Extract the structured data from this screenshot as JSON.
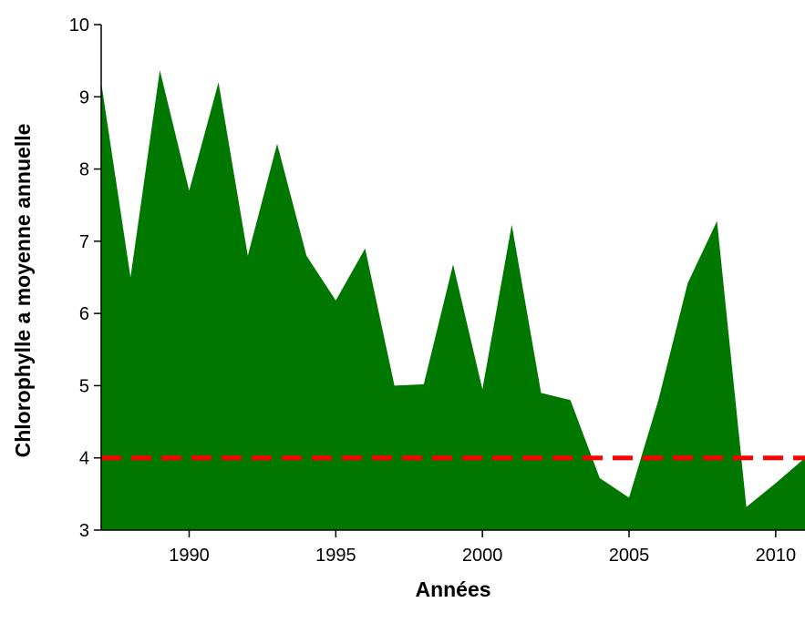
{
  "chart_data": {
    "type": "area",
    "title": "",
    "xlabel": "Années",
    "ylabel": "Chlorophylle a moyenne annuelle",
    "xlim": [
      1987,
      2011
    ],
    "ylim": [
      3,
      10
    ],
    "xticks": [
      1990,
      1995,
      2000,
      2005,
      2010
    ],
    "yticks": [
      3,
      4,
      5,
      6,
      7,
      8,
      9,
      10
    ],
    "grid": false,
    "legend": "none",
    "x": [
      1987,
      1988,
      1989,
      1990,
      1991,
      1992,
      1993,
      1994,
      1995,
      1996,
      1997,
      1998,
      1999,
      2000,
      2001,
      2002,
      2003,
      2004,
      2005,
      2006,
      2007,
      2008,
      2009,
      2010,
      2011
    ],
    "series": [
      {
        "values": [
          9.2,
          6.5,
          9.37,
          7.7,
          9.2,
          6.8,
          8.35,
          6.8,
          6.18,
          6.9,
          5.0,
          5.02,
          6.68,
          4.95,
          7.23,
          4.9,
          4.8,
          3.72,
          3.45,
          4.8,
          6.42,
          7.28,
          3.32,
          3.65,
          4.0
        ],
        "color": "#007800"
      }
    ],
    "reference_line": {
      "y": 4,
      "color": "#ff0000",
      "style": "dashed"
    }
  }
}
